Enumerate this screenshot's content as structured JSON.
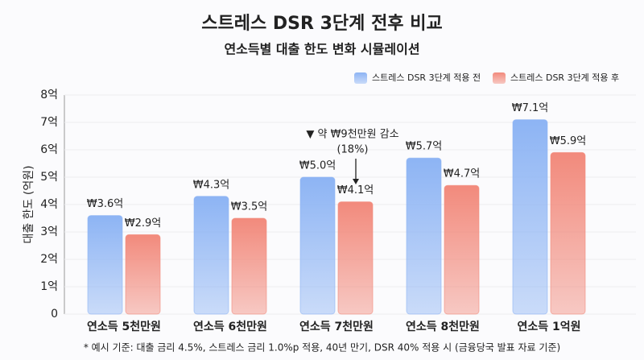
{
  "chart_data": {
    "type": "bar",
    "title": "스트레스 DSR 3단계 전후 비교",
    "subtitle": "연소득별 대출 한도 변화 시뮬레이션",
    "ylabel": "대출 한도 (억원)",
    "categories": [
      "연소득 5천만원",
      "연소득 6천만원",
      "연소득 7천만원",
      "연소득 8천만원",
      "연소득 1억원"
    ],
    "series": [
      {
        "name": "스트레스 DSR 3단계 적용 전",
        "color": "#8db4f4",
        "values": [
          3.6,
          4.3,
          5.0,
          5.7,
          7.1
        ],
        "value_labels": [
          "₩3.6억",
          "₩4.3억",
          "₩5.0억",
          "₩5.7억",
          "₩7.1억"
        ]
      },
      {
        "name": "스트레스 DSR 3단계 적용 후",
        "color": "#f28a7c",
        "values": [
          2.9,
          3.5,
          4.1,
          4.7,
          5.9
        ],
        "value_labels": [
          "₩2.9억",
          "₩3.5억",
          "₩4.1억",
          "₩4.7억",
          "₩5.9억"
        ]
      }
    ],
    "ylim": [
      0,
      8
    ],
    "yticks": [
      0,
      {
        "value": 1,
        "label": "1억"
      },
      {
        "value": 2,
        "label": "2억"
      },
      {
        "value": 3,
        "label": "3억"
      },
      {
        "value": 4,
        "label": "4억"
      },
      {
        "value": 5,
        "label": "5억"
      },
      {
        "value": 6,
        "label": "6억"
      },
      {
        "value": 7,
        "label": "7억"
      },
      {
        "value": 8,
        "label": "8억"
      }
    ],
    "grid": true,
    "legend": "top-right",
    "annotation": {
      "lines": [
        "▼ 약 ₩9천만원 감소",
        "(18%)"
      ],
      "category": 2
    },
    "footnote": "* 예시 기준: 대출 금리 4.5%, 스트레스 금리 1.0%p 적용, 40년 만기, DSR 40% 적용 시 (금융당국 발표 자료 기준)"
  }
}
